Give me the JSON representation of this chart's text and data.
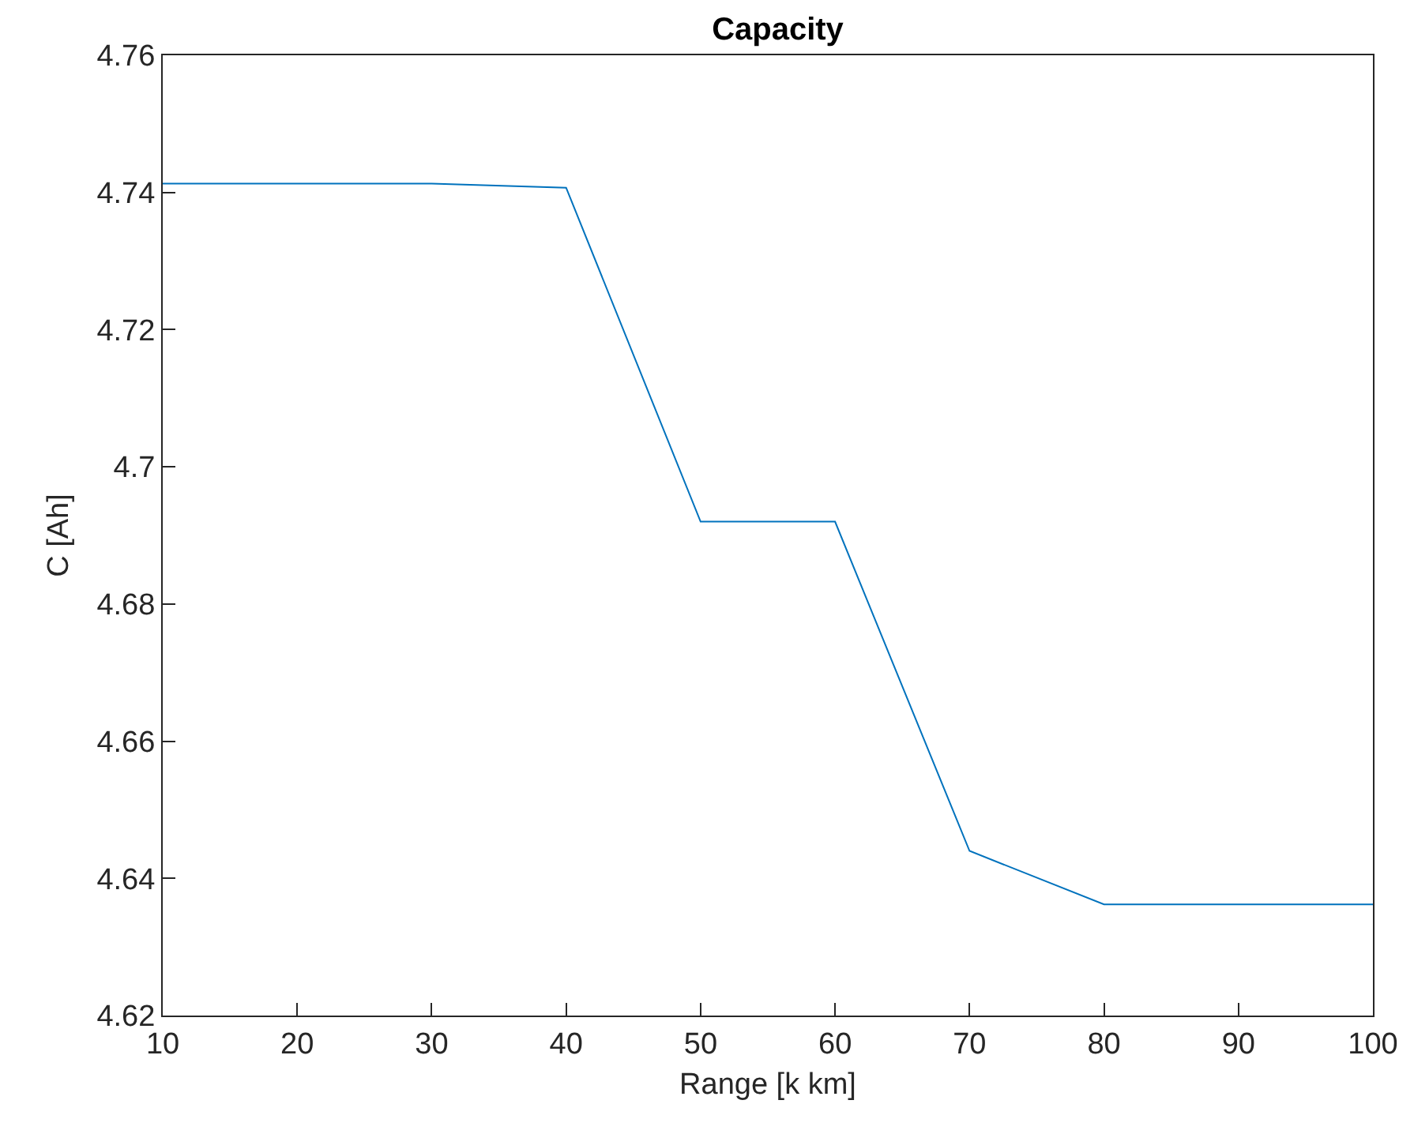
{
  "chart_data": {
    "type": "line",
    "title": "Capacity",
    "xlabel": "Range [k km]",
    "ylabel": "C [Ah]",
    "x": [
      10,
      20,
      30,
      40,
      50,
      60,
      70,
      80,
      90,
      100
    ],
    "series": [
      {
        "color": "#0072bd",
        "values": [
          4.7413,
          4.7413,
          4.7413,
          4.7407,
          4.692,
          4.692,
          4.644,
          4.6362,
          4.6362,
          4.6362
        ]
      }
    ],
    "xlim": [
      10,
      100
    ],
    "xticks": [
      10,
      20,
      30,
      40,
      50,
      60,
      70,
      80,
      90,
      100
    ],
    "ylim": [
      4.62,
      4.76
    ],
    "yticks": [
      4.62,
      4.64,
      4.66,
      4.68,
      {
        "value": 4.7,
        "label": "4.7"
      },
      4.72,
      4.74,
      4.76
    ],
    "grid": false,
    "legend": false,
    "marker": "none",
    "line_style": "solid"
  }
}
